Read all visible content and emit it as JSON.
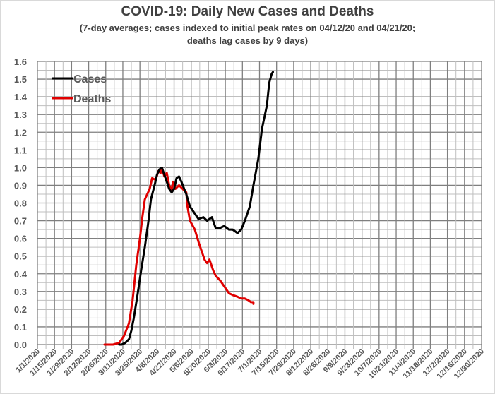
{
  "chart_data": {
    "type": "line",
    "title": "COVID-19: Daily New Cases and Deaths",
    "subtitle_line1": "(7-day averages; cases indexed to initial peak rates on 04/12/20 and 04/21/20;",
    "subtitle_line2": "deaths lag cases by 9 days)",
    "xlabel": "",
    "ylabel": "",
    "xlim_days": [
      0,
      364
    ],
    "ylim": [
      0,
      1.6
    ],
    "y_ticks": [
      "0.0",
      "0.1",
      "0.2",
      "0.3",
      "0.4",
      "0.5",
      "0.6",
      "0.7",
      "0.8",
      "0.9",
      "1.0",
      "1.1",
      "1.2",
      "1.3",
      "1.4",
      "1.5",
      "1.6"
    ],
    "x_tick_days": [
      0,
      14,
      28,
      42,
      56,
      70,
      84,
      98,
      112,
      126,
      140,
      154,
      168,
      182,
      196,
      210,
      224,
      238,
      252,
      266,
      280,
      294,
      308,
      322,
      336,
      350,
      364
    ],
    "x_tick_labels": [
      "1/1/2020",
      "1/15/2020",
      "1/29/2020",
      "2/12/2020",
      "2/26/2020",
      "3/11/2020",
      "3/25/2020",
      "4/8/2020",
      "4/22/2020",
      "5/6/2020",
      "5/20/2020",
      "6/3/2020",
      "6/17/2020",
      "7/1/2020",
      "7/15/2020",
      "7/29/2020",
      "8/12/2020",
      "8/26/2020",
      "9/9/2020",
      "9/23/2020",
      "10/7/2020",
      "10/21/2020",
      "11/4/2020",
      "11/18/2020",
      "12/2/2020",
      "12/16/2020",
      "12/30/2020"
    ],
    "grid": "major every 14 days and 0.1; minor every 7 days and 0.05",
    "legend_position": "top-left",
    "series": [
      {
        "name": "Cases",
        "color": "#000000",
        "x_days": [
          67,
          69,
          72,
          75,
          77,
          79,
          82,
          85,
          88,
          91,
          93,
          96,
          98,
          100,
          102,
          104,
          106,
          108,
          110,
          112,
          114,
          116,
          118,
          122,
          125,
          129,
          132,
          136,
          139,
          143,
          146,
          150,
          153,
          157,
          160,
          164,
          167,
          170,
          174,
          177,
          181,
          184,
          188,
          190,
          192,
          193
        ],
        "values": [
          0.0,
          0.0,
          0.01,
          0.03,
          0.08,
          0.15,
          0.28,
          0.42,
          0.55,
          0.7,
          0.82,
          0.9,
          0.96,
          0.99,
          1.0,
          0.96,
          0.92,
          0.88,
          0.86,
          0.88,
          0.94,
          0.95,
          0.92,
          0.85,
          0.78,
          0.74,
          0.71,
          0.72,
          0.7,
          0.72,
          0.66,
          0.66,
          0.67,
          0.65,
          0.65,
          0.63,
          0.65,
          0.7,
          0.78,
          0.9,
          1.05,
          1.22,
          1.35,
          1.48,
          1.53,
          1.54
        ]
      },
      {
        "name": "Deaths",
        "color": "#e00000",
        "x_days": [
          55,
          62,
          67,
          71,
          75,
          78,
          81,
          84,
          86,
          88,
          92,
          94,
          97,
          99,
          101,
          102,
          104,
          106,
          108,
          110,
          111,
          113,
          116,
          119,
          122,
          123,
          125,
          129,
          132,
          133,
          137,
          139,
          141,
          144,
          146,
          150,
          153,
          157,
          160,
          164,
          167,
          170,
          173,
          175,
          177,
          177
        ],
        "values": [
          0.0,
          0.0,
          0.01,
          0.05,
          0.12,
          0.25,
          0.45,
          0.6,
          0.72,
          0.82,
          0.88,
          0.94,
          0.93,
          0.98,
          0.97,
          1.0,
          0.95,
          0.97,
          0.9,
          0.87,
          0.92,
          0.88,
          0.9,
          0.88,
          0.86,
          0.78,
          0.7,
          0.65,
          0.58,
          0.56,
          0.48,
          0.46,
          0.48,
          0.42,
          0.39,
          0.36,
          0.33,
          0.29,
          0.28,
          0.27,
          0.26,
          0.26,
          0.25,
          0.24,
          0.24,
          0.23
        ]
      }
    ]
  }
}
